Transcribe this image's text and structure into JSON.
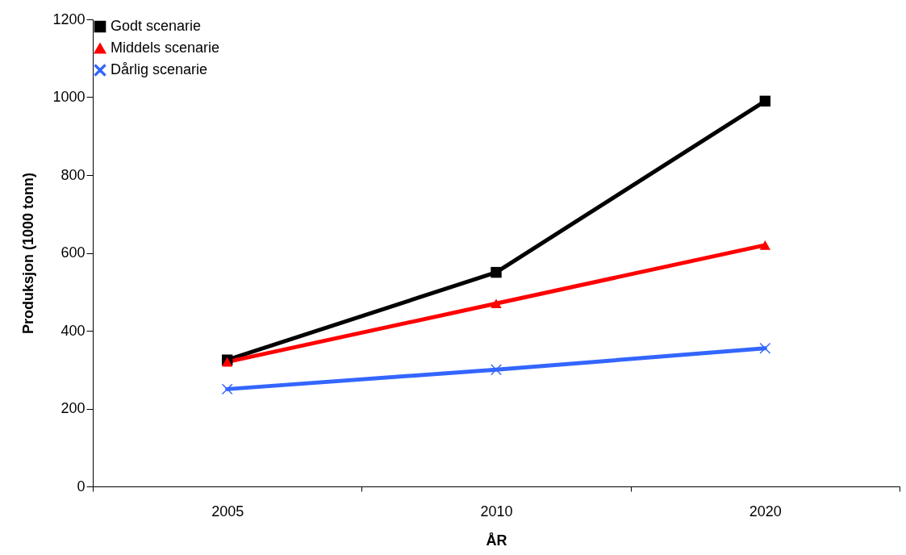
{
  "chart_data": {
    "type": "line",
    "xlabel": "ÅR",
    "ylabel": "Produksjon (1000 tonn)",
    "categories": [
      "2005",
      "2010",
      "2020"
    ],
    "series": [
      {
        "name": "Godt scenarie",
        "color": "#000000",
        "marker": "square",
        "values": [
          325,
          550,
          990
        ]
      },
      {
        "name": "Middels scenarie",
        "color": "#ff0000",
        "marker": "triangle",
        "values": [
          320,
          470,
          620
        ]
      },
      {
        "name": "Dårlig scenarie",
        "color": "#3366ff",
        "marker": "cross",
        "values": [
          250,
          300,
          355
        ]
      }
    ],
    "ylim": [
      0,
      1200
    ],
    "yticks": [
      0,
      200,
      400,
      600,
      800,
      1000,
      1200
    ],
    "legend": "top left"
  }
}
